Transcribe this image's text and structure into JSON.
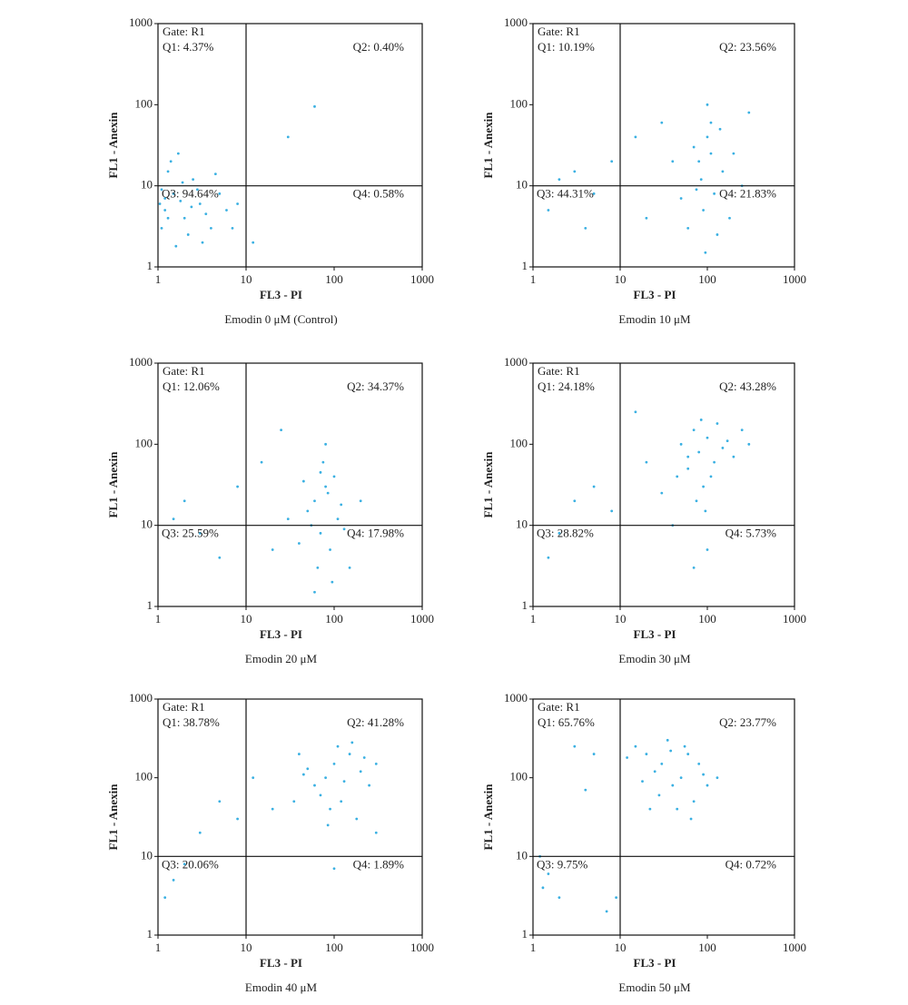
{
  "chart_data": [
    {
      "type": "scatter",
      "title": "Emodin 0 μM (Control)",
      "xlabel": "FL3 - PI",
      "ylabel": "FL1 - Anexin",
      "gate": "Gate: R1",
      "quadrants": [
        "Q1: 4.37%",
        "Q2: 0.40%",
        "Q3: 94.64%",
        "Q4: 0.58%"
      ],
      "quadrant_x": 10,
      "quadrant_y": 10,
      "xlim": [
        1,
        1000
      ],
      "ylim": [
        1,
        1000
      ],
      "xticks": [
        1,
        10,
        100,
        1000
      ],
      "yticks": [
        1,
        10,
        100,
        1000
      ],
      "log": true,
      "color": "#3ab0e2",
      "x": [
        1.2,
        1.5,
        2,
        1.1,
        3,
        2.5,
        1.3,
        4,
        1.8,
        5,
        1.1,
        2.2,
        6,
        1.4,
        3.5,
        1.6,
        7,
        2.8,
        1.2,
        1.9,
        4.5,
        1.3,
        8,
        1.05,
        2.4,
        3.2,
        30,
        60,
        12,
        1.7
      ],
      "y": [
        5,
        8,
        4,
        3,
        6,
        12,
        15,
        3,
        6.5,
        8,
        9,
        2.5,
        5,
        20,
        4.5,
        1.8,
        3,
        9,
        7,
        11,
        14,
        4,
        6,
        6,
        5.5,
        2,
        40,
        95,
        2,
        25
      ]
    },
    {
      "type": "scatter",
      "title": "Emodin 10 μM",
      "xlabel": "FL3 - PI",
      "ylabel": "FL1 - Anexin",
      "gate": "Gate: R1",
      "quadrants": [
        "Q1: 10.19%",
        "Q2: 23.56%",
        "Q3: 44.31%",
        "Q4: 21.83%"
      ],
      "quadrant_x": 10,
      "quadrant_y": 10,
      "xlim": [
        1,
        1000
      ],
      "ylim": [
        1,
        1000
      ],
      "xticks": [
        1,
        10,
        100,
        1000
      ],
      "yticks": [
        1,
        10,
        100,
        1000
      ],
      "log": true,
      "color": "#3ab0e2",
      "x": [
        80,
        100,
        120,
        90,
        70,
        150,
        110,
        60,
        130,
        85,
        100,
        200,
        50,
        95,
        140,
        75,
        40,
        20,
        3,
        5,
        2,
        1.5,
        8,
        4,
        15,
        30,
        250,
        300,
        180,
        110
      ],
      "y": [
        20,
        40,
        8,
        5,
        30,
        15,
        60,
        3,
        2.5,
        12,
        100,
        25,
        7,
        1.5,
        50,
        9,
        20,
        4,
        15,
        8,
        12,
        5,
        20,
        3,
        40,
        60,
        10,
        80,
        4,
        25
      ]
    },
    {
      "type": "scatter",
      "title": "Emodin 20 μM",
      "xlabel": "FL3 - PI",
      "ylabel": "FL1 - Anexin",
      "gate": "Gate: R1",
      "quadrants": [
        "Q1: 12.06%",
        "Q2: 34.37%",
        "Q3: 25.59%",
        "Q4: 17.98%"
      ],
      "quadrant_x": 10,
      "quadrant_y": 10,
      "xlim": [
        1,
        1000
      ],
      "ylim": [
        1,
        1000
      ],
      "xticks": [
        1,
        10,
        100,
        1000
      ],
      "yticks": [
        1,
        10,
        100,
        1000
      ],
      "log": true,
      "color": "#3ab0e2",
      "x": [
        60,
        80,
        70,
        90,
        50,
        100,
        75,
        65,
        110,
        85,
        55,
        120,
        40,
        95,
        70,
        130,
        45,
        200,
        30,
        20,
        3,
        2,
        5,
        1.5,
        8,
        15,
        25,
        150,
        80,
        60
      ],
      "y": [
        20,
        30,
        8,
        5,
        15,
        40,
        60,
        3,
        12,
        25,
        10,
        18,
        6,
        2,
        45,
        9,
        35,
        20,
        12,
        5,
        8,
        20,
        4,
        12,
        30,
        60,
        150,
        3,
        100,
        1.5
      ]
    },
    {
      "type": "scatter",
      "title": "Emodin 30 μM",
      "xlabel": "FL3 - PI",
      "ylabel": "FL1 - Anexin",
      "gate": "Gate: R1",
      "quadrants": [
        "Q1: 24.18%",
        "Q2: 43.28%",
        "Q3: 28.82%",
        "Q4: 5.73%"
      ],
      "quadrant_x": 10,
      "quadrant_y": 10,
      "xlim": [
        1,
        1000
      ],
      "ylim": [
        1,
        1000
      ],
      "xticks": [
        1,
        10,
        100,
        1000
      ],
      "yticks": [
        1,
        10,
        100,
        1000
      ],
      "log": true,
      "color": "#3ab0e2",
      "x": [
        80,
        100,
        60,
        120,
        70,
        150,
        90,
        50,
        200,
        110,
        75,
        130,
        60,
        95,
        170,
        45,
        85,
        300,
        30,
        20,
        3,
        2,
        1.5,
        5,
        8,
        100,
        70,
        15,
        250,
        40
      ],
      "y": [
        80,
        120,
        50,
        60,
        150,
        90,
        30,
        100,
        70,
        40,
        20,
        180,
        70,
        15,
        110,
        40,
        200,
        100,
        25,
        60,
        20,
        8,
        4,
        30,
        15,
        5,
        3,
        250,
        150,
        10
      ]
    },
    {
      "type": "scatter",
      "title": "Emodin 40 μM",
      "xlabel": "FL3 - PI",
      "ylabel": "FL1 - Anexin",
      "gate": "Gate: R1",
      "quadrants": [
        "Q1: 38.78%",
        "Q2: 41.28%",
        "Q3: 20.06%",
        "Q4: 1.89%"
      ],
      "quadrant_x": 10,
      "quadrant_y": 10,
      "xlim": [
        1,
        1000
      ],
      "ylim": [
        1,
        1000
      ],
      "xticks": [
        1,
        10,
        100,
        1000
      ],
      "yticks": [
        1,
        10,
        100,
        1000
      ],
      "log": true,
      "color": "#3ab0e2",
      "x": [
        80,
        100,
        60,
        120,
        150,
        200,
        90,
        50,
        250,
        110,
        70,
        40,
        180,
        130,
        300,
        35,
        85,
        160,
        45,
        220,
        20,
        5,
        3,
        1.5,
        1.2,
        2,
        12,
        8,
        100,
        300
      ],
      "y": [
        100,
        150,
        80,
        50,
        200,
        120,
        40,
        130,
        80,
        250,
        60,
        200,
        30,
        90,
        150,
        50,
        25,
        280,
        110,
        180,
        40,
        50,
        20,
        5,
        3,
        8,
        100,
        30,
        7,
        20
      ]
    },
    {
      "type": "scatter",
      "title": "Emodin 50 μM",
      "xlabel": "FL3 - PI",
      "ylabel": "FL1 - Anexin",
      "gate": "Gate: R1",
      "quadrants": [
        "Q1: 65.76%",
        "Q2: 23.77%",
        "Q3: 9.75%",
        "Q4: 0.72%"
      ],
      "quadrant_x": 10,
      "quadrant_y": 10,
      "xlim": [
        1,
        1000
      ],
      "ylim": [
        1,
        1000
      ],
      "xticks": [
        1,
        10,
        100,
        1000
      ],
      "yticks": [
        1,
        10,
        100,
        1000
      ],
      "log": true,
      "color": "#3ab0e2",
      "x": [
        20,
        30,
        15,
        50,
        40,
        60,
        25,
        70,
        35,
        12,
        45,
        80,
        55,
        18,
        90,
        28,
        65,
        38,
        100,
        22,
        5,
        3,
        1.3,
        1.5,
        2,
        1.2,
        9,
        4,
        7,
        130
      ],
      "y": [
        200,
        150,
        250,
        100,
        80,
        200,
        120,
        50,
        300,
        180,
        40,
        150,
        250,
        90,
        110,
        60,
        30,
        220,
        80,
        40,
        200,
        250,
        4,
        6,
        3,
        10,
        3,
        70,
        2,
        100
      ]
    }
  ]
}
